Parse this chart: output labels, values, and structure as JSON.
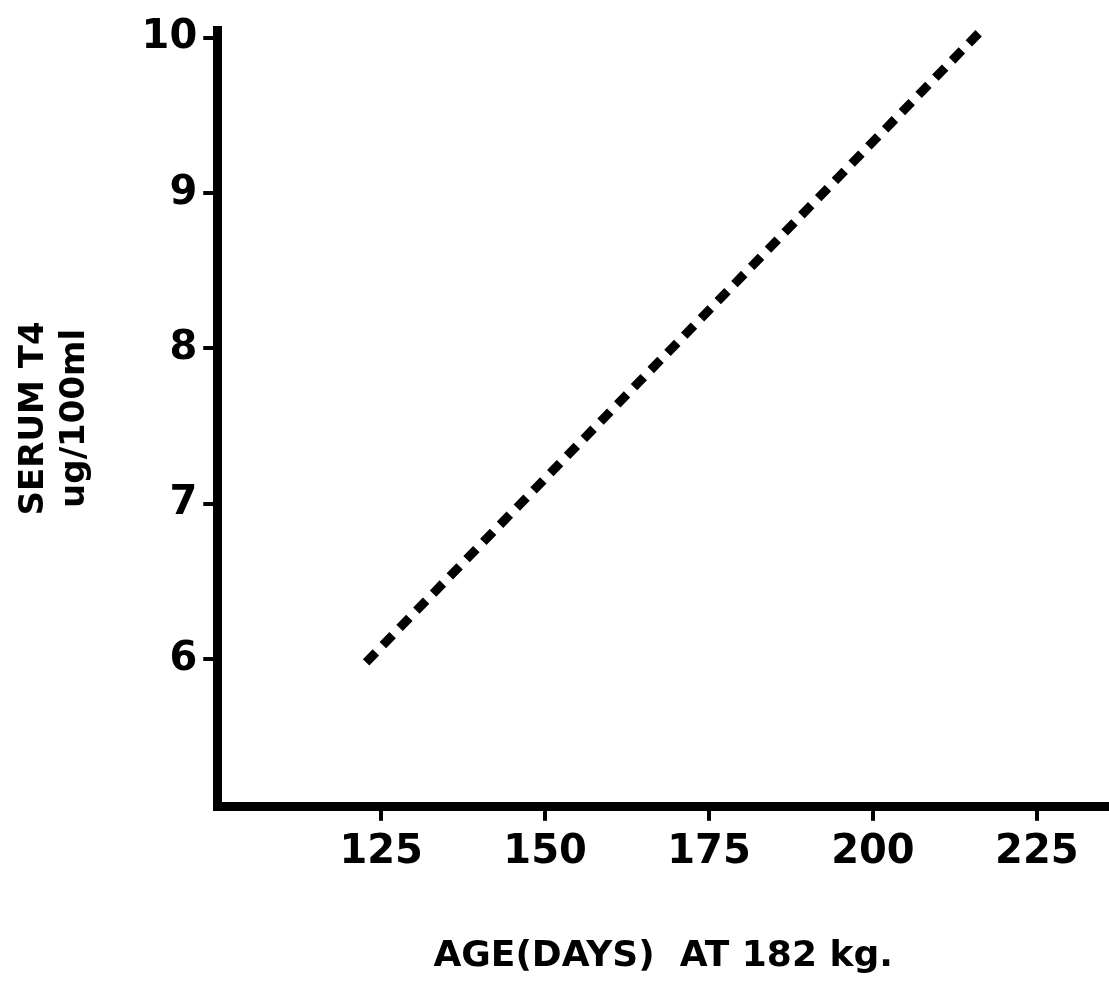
{
  "chart_data": {
    "type": "line",
    "xlabel": "AGE(DAYS)  AT 182 kg.",
    "ylabel": "SERUM T4\nug/100ml",
    "x": [
      122.7,
      216.6
    ],
    "series": [
      {
        "color": "#000000",
        "values": [
          5.98,
          10.05
        ],
        "line_style": "dashed"
      }
    ],
    "xlim": [
      100,
      236
    ],
    "xticks": [
      125,
      150,
      175,
      200,
      225
    ],
    "ylim": [
      5.05,
      10.05
    ],
    "yticks": [
      6,
      7,
      8,
      9,
      10
    ],
    "grid": false,
    "legend": false,
    "marker": "none"
  }
}
